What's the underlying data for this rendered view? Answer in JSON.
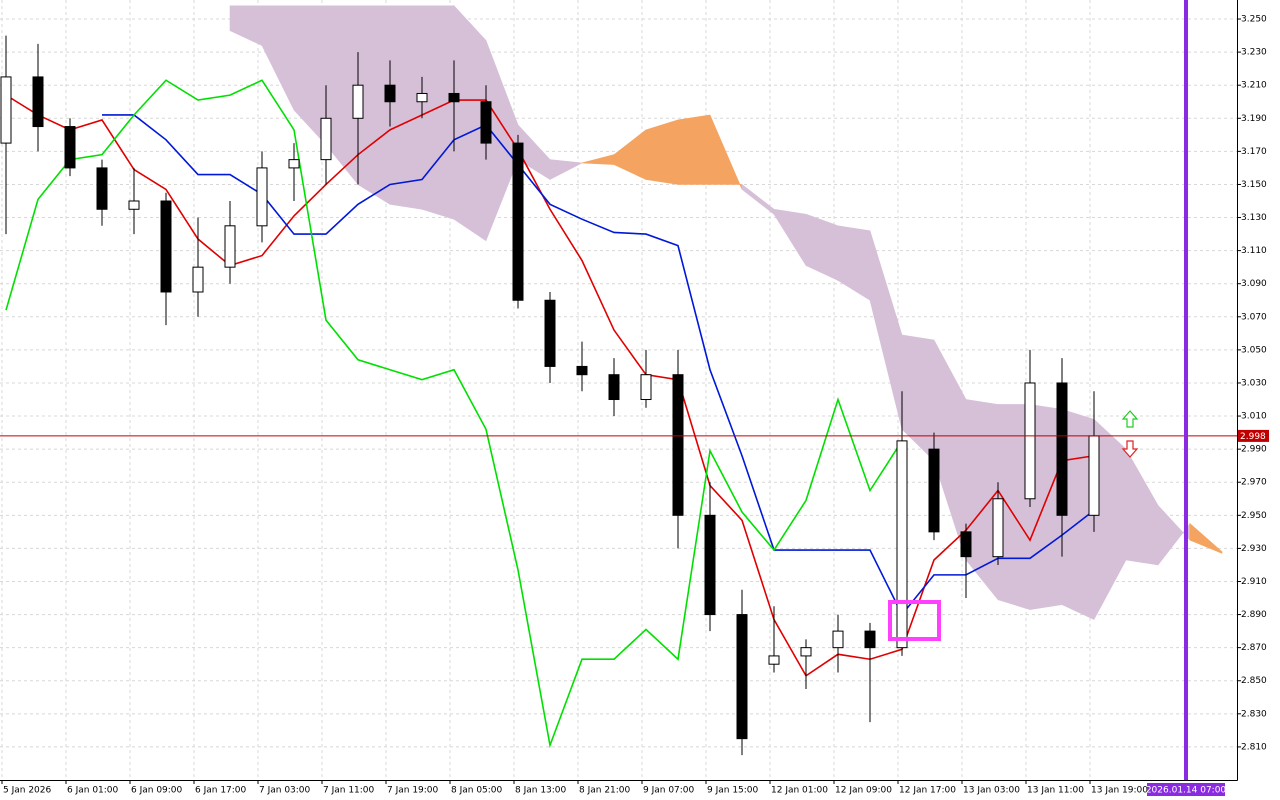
{
  "chart_data": {
    "type": "candlestick",
    "categories": [
      "5 Jan 2026",
      null,
      "6 Jan 01:00",
      null,
      "6 Jan 09:00",
      null,
      "6 Jan 17:00",
      null,
      "7 Jan 03:00",
      null,
      "7 Jan 11:00",
      null,
      "7 Jan 19:00",
      null,
      "8 Jan 05:00",
      null,
      "8 Jan 13:00",
      null,
      "8 Jan 21:00",
      null,
      "9 Jan 07:00",
      null,
      "9 Jan 15:00",
      null,
      "12 Jan 01:00",
      null,
      "12 Jan 09:00",
      null,
      "12 Jan 17:00",
      null,
      "13 Jan 03:00",
      null,
      "13 Jan 11:00",
      null,
      "13 Jan 19:00",
      null,
      null,
      null,
      null
    ],
    "open": [
      3.175,
      3.215,
      3.185,
      3.16,
      3.135,
      3.14,
      3.085,
      3.1,
      3.125,
      3.16,
      3.165,
      3.19,
      3.21,
      3.2,
      3.205,
      3.2,
      3.175,
      3.08,
      3.04,
      3.035,
      3.02,
      3.035,
      2.95,
      2.89,
      2.86,
      2.865,
      2.87,
      2.88,
      2.87,
      2.99,
      2.94,
      2.925,
      2.96,
      3.03,
      2.95,
      null,
      null,
      null,
      null
    ],
    "high": [
      3.24,
      3.235,
      3.19,
      3.165,
      3.16,
      3.145,
      3.13,
      3.14,
      3.17,
      3.175,
      3.21,
      3.23,
      3.225,
      3.215,
      3.225,
      3.21,
      3.18,
      3.085,
      3.055,
      3.045,
      3.05,
      3.05,
      2.97,
      2.905,
      2.895,
      2.875,
      2.89,
      2.885,
      3.025,
      3.0,
      2.945,
      2.97,
      3.05,
      3.045,
      3.025,
      null,
      null,
      null,
      null
    ],
    "low": [
      3.12,
      3.17,
      3.155,
      3.125,
      3.12,
      3.065,
      3.07,
      3.09,
      3.115,
      3.14,
      3.15,
      3.15,
      3.185,
      3.19,
      3.17,
      3.165,
      3.075,
      3.03,
      3.025,
      3.01,
      3.015,
      2.93,
      2.88,
      2.805,
      2.855,
      2.845,
      2.855,
      2.825,
      2.865,
      2.935,
      2.9,
      2.92,
      2.955,
      2.925,
      2.94,
      null,
      null,
      null,
      null
    ],
    "close": [
      3.215,
      3.185,
      3.16,
      3.135,
      3.14,
      3.085,
      3.1,
      3.125,
      3.16,
      3.165,
      3.19,
      3.21,
      3.2,
      3.205,
      3.2,
      3.175,
      3.08,
      3.04,
      3.035,
      3.02,
      3.035,
      2.95,
      2.89,
      2.815,
      2.865,
      2.87,
      2.88,
      2.87,
      2.995,
      2.94,
      2.925,
      2.96,
      3.03,
      2.95,
      2.998,
      null,
      null,
      null,
      null
    ],
    "up_color": "#ffffff",
    "down_color": "#000000",
    "lines": [
      {
        "color": "#e00000",
        "values": [
          3.204,
          3.192,
          3.183,
          3.189,
          3.159,
          3.147,
          3.117,
          3.101,
          3.107,
          3.131,
          3.15,
          3.168,
          3.183,
          3.192,
          3.201,
          3.201,
          3.171,
          3.135,
          3.104,
          3.062,
          3.035,
          3.032,
          2.968,
          2.947,
          2.887,
          2.853,
          2.866,
          2.863,
          2.869,
          2.923,
          2.941,
          2.965,
          2.935,
          2.983,
          2.986,
          null,
          null,
          null,
          null
        ]
      },
      {
        "color": "#0018d8",
        "values": [
          null,
          null,
          null,
          3.192,
          3.192,
          3.177,
          3.156,
          3.156,
          3.144,
          3.12,
          3.12,
          3.138,
          3.15,
          3.153,
          3.177,
          3.186,
          3.162,
          3.138,
          3.129,
          3.121,
          3.12,
          3.113,
          3.038,
          2.986,
          2.929,
          2.929,
          2.929,
          2.929,
          2.89,
          2.914,
          2.914,
          2.924,
          2.924,
          2.938,
          2.953,
          null,
          null,
          null,
          null
        ]
      },
      {
        "color": "#00e000",
        "values": [
          3.074,
          3.141,
          3.165,
          3.168,
          3.192,
          3.213,
          3.201,
          3.204,
          3.213,
          3.183,
          3.068,
          3.044,
          3.038,
          3.032,
          3.038,
          3.002,
          2.917,
          2.811,
          2.863,
          2.863,
          2.881,
          2.863,
          2.989,
          2.952,
          2.929,
          2.959,
          3.02,
          2.965,
          2.995,
          null,
          null,
          null,
          null,
          null,
          null,
          null,
          null,
          null,
          null
        ]
      }
    ],
    "cloud": {
      "a": [
        null,
        null,
        null,
        null,
        null,
        null,
        null,
        3.243,
        3.234,
        3.195,
        3.174,
        3.15,
        3.138,
        3.135,
        3.129,
        3.116,
        3.165,
        3.153,
        3.163,
        3.168,
        3.183,
        3.189,
        3.192,
        3.147,
        3.132,
        3.101,
        3.092,
        3.08,
        3.002,
        2.983,
        2.923,
        2.899,
        2.893,
        2.896,
        2.887,
        2.923,
        2.92,
        2.945,
        2.928
      ],
      "b": [
        null,
        null,
        null,
        null,
        null,
        null,
        null,
        3.258,
        3.258,
        3.258,
        3.258,
        3.258,
        3.258,
        3.258,
        3.258,
        3.237,
        3.186,
        3.165,
        3.163,
        3.162,
        3.153,
        3.15,
        3.15,
        3.15,
        3.135,
        3.132,
        3.125,
        3.122,
        3.059,
        3.056,
        3.02,
        3.017,
        3.017,
        3.014,
        3.008,
        2.99,
        2.956,
        2.935,
        2.927
      ],
      "up_color": "#f4a460",
      "down_color": "#d6c0d8"
    },
    "ylim": [
      2.79,
      3.2615
    ],
    "yticks": [
      {
        "value": 3.25,
        "label": "3.250"
      },
      {
        "value": 3.23,
        "label": "3.230"
      },
      {
        "value": 3.21,
        "label": "3.210"
      },
      {
        "value": 3.19,
        "label": "3.190"
      },
      {
        "value": 3.17,
        "label": "3.170"
      },
      {
        "value": 3.15,
        "label": "3.150"
      },
      {
        "value": 3.13,
        "label": "3.130"
      },
      {
        "value": 3.11,
        "label": "3.110"
      },
      {
        "value": 3.09,
        "label": "3.090"
      },
      {
        "value": 3.07,
        "label": "3.070"
      },
      {
        "value": 3.05,
        "label": "3.050"
      },
      {
        "value": 3.03,
        "label": "3.030"
      },
      {
        "value": 3.01,
        "label": "3.010"
      },
      {
        "value": 2.99,
        "label": "2.990"
      },
      {
        "value": 2.97,
        "label": "2.970"
      },
      {
        "value": 2.95,
        "label": "2.950"
      },
      {
        "value": 2.93,
        "label": "2.930"
      },
      {
        "value": 2.91,
        "label": "2.910"
      },
      {
        "value": 2.89,
        "label": "2.890"
      },
      {
        "value": 2.87,
        "label": "2.870"
      },
      {
        "value": 2.85,
        "label": "2.850"
      },
      {
        "value": 2.83,
        "label": "2.830"
      },
      {
        "value": 2.81,
        "label": "2.810"
      }
    ],
    "grid": true,
    "hline": {
      "value": 2.998,
      "color": "#c00000"
    },
    "vline": {
      "label": "2026.01.14 07:00",
      "color": "#8a2be2"
    }
  }
}
